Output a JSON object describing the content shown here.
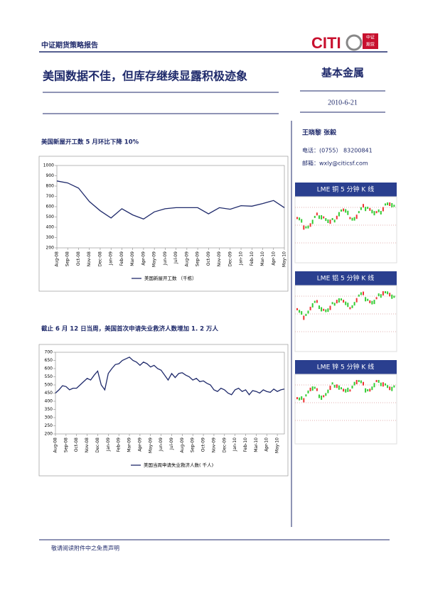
{
  "header": {
    "report_name": "中证期货策略报告",
    "logo_text": "CITI",
    "logo_cn_1": "中证",
    "logo_cn_2": "期货"
  },
  "title": "美国数据不佳，但库存继续显露积极迹象",
  "sector": "基本金属",
  "date": "2010-6-21",
  "authors": "王晓黎  张毅",
  "phone": "电话：(0755）  83200841",
  "email": "邮箱：wxly@citicsf.com",
  "side_panels": [
    "LME 铜 5 分钟 K 线",
    "LME 铝 5 分钟 K 线",
    "LME 锌 5 分钟 K 线"
  ],
  "footer": "敬请阅读附件中之免责声明",
  "chart_data": [
    {
      "type": "line",
      "title": "美国新屋开工数 5 月环比下降 10%",
      "categories": [
        "Aug-08",
        "Sep-08",
        "Oct-08",
        "Nov-08",
        "Dec-08",
        "Jan-09",
        "Feb-09",
        "Mar-09",
        "Apr-09",
        "May-09",
        "Jun-09",
        "Jul-09",
        "Aug-09",
        "Sep-09",
        "Oct-09",
        "Nov-09",
        "Dec-09",
        "Jan-10",
        "Feb-10",
        "Mar-10",
        "Apr-10",
        "May-10"
      ],
      "series": [
        {
          "name": "美国新屋开工数 （千栋）",
          "color": "#1f2a6b",
          "values": [
            850,
            830,
            780,
            650,
            560,
            490,
            580,
            520,
            480,
            550,
            580,
            590,
            590,
            590,
            530,
            590,
            575,
            610,
            605,
            630,
            660,
            590
          ]
        }
      ],
      "ylim": [
        200,
        1000
      ],
      "yticks": [
        200,
        300,
        400,
        500,
        600,
        700,
        800,
        900,
        1000
      ]
    },
    {
      "type": "line",
      "title": "截止 6 月 12 日当周，美国首次申请失业救济人数增加 1. 2 万人",
      "categories": [
        "Aug-08",
        null,
        null,
        "Sep-08",
        null,
        null,
        "Oct-08",
        null,
        null,
        "Nov-08",
        null,
        null,
        "Dec-08",
        null,
        null,
        "Jan-09",
        null,
        null,
        "Feb-09",
        null,
        null,
        "Mar-09",
        null,
        null,
        "Apr-09",
        null,
        null,
        "May-09",
        null,
        null,
        "Jun-09",
        null,
        null,
        "Jul-09",
        null,
        null,
        "Aug-09",
        null,
        null,
        "Sep-09",
        null,
        null,
        "Oct-09",
        null,
        null,
        "Nov-09",
        null,
        null,
        "Dec-09",
        null,
        null,
        "Jan-10",
        null,
        null,
        "Feb-10",
        null,
        null,
        "Mar-10",
        null,
        null,
        "Apr-10",
        null,
        null,
        "May-10",
        null,
        null
      ],
      "series": [
        {
          "name": "美国当周申请失业救济人数( 千人)",
          "color": "#1f2a6b",
          "values": [
            450,
            470,
            495,
            490,
            470,
            480,
            480,
            500,
            520,
            540,
            530,
            560,
            585,
            500,
            470,
            570,
            600,
            625,
            630,
            650,
            660,
            670,
            650,
            640,
            620,
            640,
            630,
            610,
            620,
            600,
            590,
            560,
            530,
            570,
            545,
            570,
            575,
            560,
            550,
            530,
            540,
            520,
            525,
            510,
            500,
            470,
            460,
            480,
            470,
            450,
            440,
            470,
            480,
            460,
            470,
            440,
            465,
            460,
            450,
            470,
            460,
            455,
            475,
            460,
            470,
            475
          ]
        }
      ],
      "ylim": [
        200,
        700
      ],
      "yticks": [
        200,
        250,
        300,
        350,
        400,
        450,
        500,
        550,
        600,
        650,
        700
      ]
    }
  ]
}
